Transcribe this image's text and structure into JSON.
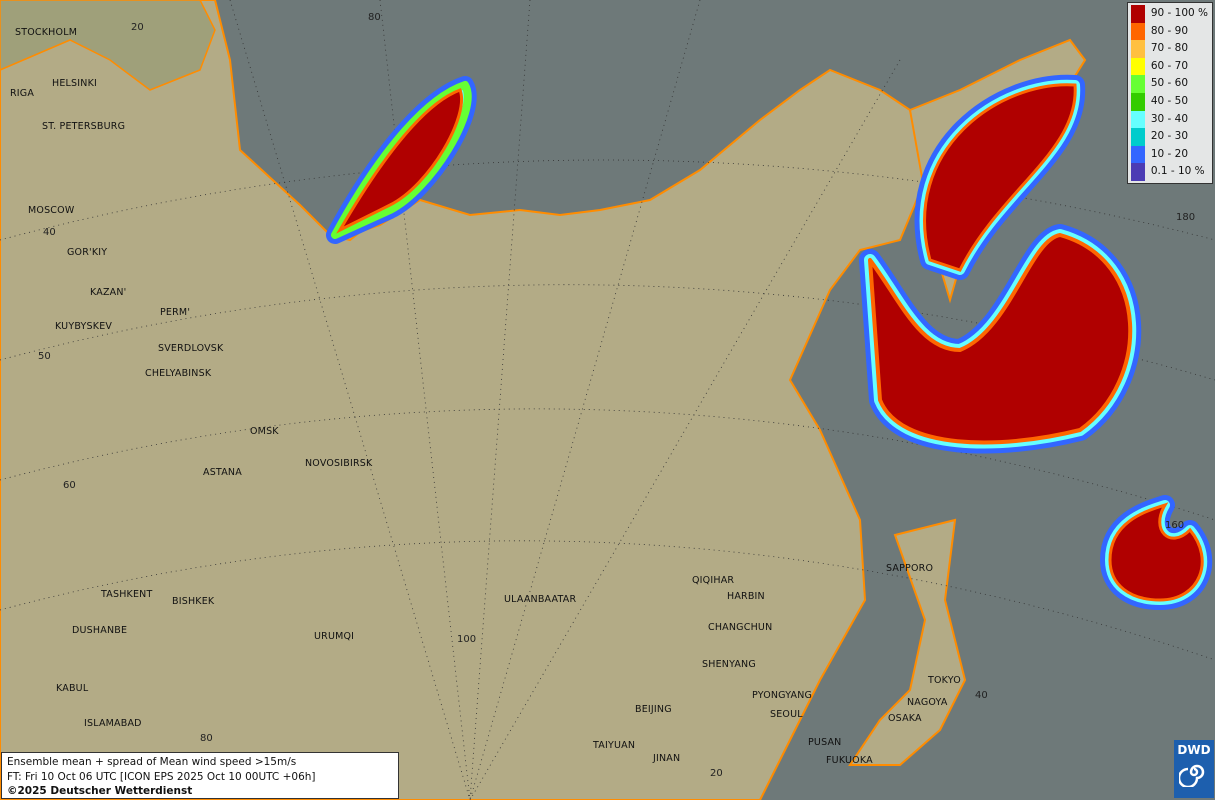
{
  "map": {
    "colors": {
      "sea": "#6e7979",
      "land": "#b3ab86",
      "coast": "#ff8c00",
      "border": "#111111",
      "river": "#4a7fd8"
    },
    "cities": [
      "STOCKHOLM",
      "HELSINKI",
      "RIGA",
      "ST. PETERSBURG",
      "MOSCOW",
      "GOR'KIY",
      "KAZAN'",
      "PERM'",
      "KUYBYSKEV",
      "SVERDLOVSK",
      "CHELYABINSK",
      "OMSK",
      "NOVOSIBIRSK",
      "ASTANA",
      "TASHKENT",
      "BISHKEK",
      "DUSHANBE",
      "URUMQI",
      "KABUL",
      "ISLAMABAD",
      "ULAANBAATAR",
      "QIQIHAR",
      "HARBIN",
      "CHANGCHUN",
      "SHENYANG",
      "BEIJING",
      "PYONGYANG",
      "SEOUL",
      "TAIYUAN",
      "JINAN",
      "PUSAN",
      "FUKUOKA",
      "OSAKA",
      "NAGOYA",
      "TOKYO",
      "SAPPORO"
    ],
    "graticule_labels": [
      "20",
      "80",
      "40",
      "50",
      "60",
      "180",
      "160",
      "100",
      "80",
      "20",
      "40"
    ]
  },
  "legend": {
    "items": [
      {
        "label": "90 - 100 %",
        "color": "#b00000"
      },
      {
        "label": "80 - 90",
        "color": "#ff6600"
      },
      {
        "label": "70 - 80",
        "color": "#ffc040"
      },
      {
        "label": "60 - 70",
        "color": "#ffff00"
      },
      {
        "label": "50 - 60",
        "color": "#66ff33"
      },
      {
        "label": "40 - 50",
        "color": "#33cc00"
      },
      {
        "label": "30 - 40",
        "color": "#66ffff"
      },
      {
        "label": "20 - 30",
        "color": "#00cccc"
      },
      {
        "label": "10 - 20",
        "color": "#3366ff"
      },
      {
        "label": "0.1 - 10 %",
        "color": "#4b3cb4"
      }
    ]
  },
  "info": {
    "line1": "Ensemble mean + spread of Mean wind speed >15m/s",
    "line2": "FT: Fri 10 Oct 06 UTC [ICON EPS 2025 Oct 10 00UTC +06h]",
    "line3": "©2025 Deutscher Wetterdienst"
  },
  "logo": {
    "text": "DWD"
  }
}
